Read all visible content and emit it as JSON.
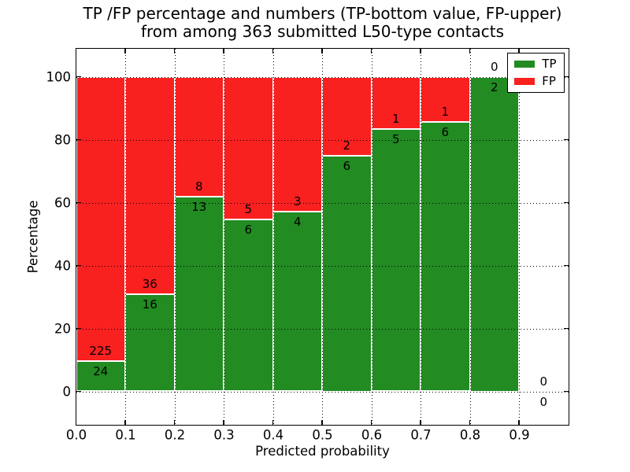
{
  "chart_data": {
    "type": "bar",
    "stacked": true,
    "normalized_to_percent": true,
    "title": "TP /FP percentage and numbers (TP-bottom value, FP-upper) from among 363 submitted L50-type contacts",
    "title_line1": "TP /FP percentage and numbers (TP-bottom value, FP-upper)",
    "title_line2": "from among 363 submitted L50-type contacts",
    "xlabel": "Predicted probability",
    "ylabel": "Percentage",
    "total_contacts": 363,
    "bin_left_edges": [
      0.0,
      0.1,
      0.2,
      0.3,
      0.4,
      0.5,
      0.6,
      0.7,
      0.8,
      0.9
    ],
    "bin_width": 0.1,
    "series": [
      {
        "name": "TP",
        "color": "#228b22",
        "values": [
          24,
          16,
          13,
          6,
          4,
          6,
          5,
          6,
          2,
          0
        ]
      },
      {
        "name": "FP",
        "color": "#f92020",
        "values": [
          225,
          36,
          8,
          5,
          3,
          2,
          1,
          1,
          0,
          0
        ]
      }
    ],
    "tp_percent_of_bin": [
      9.64,
      30.77,
      61.9,
      54.55,
      57.14,
      75.0,
      83.33,
      85.71,
      100.0,
      null
    ],
    "xlim": [
      0.0,
      1.0
    ],
    "ylim": [
      0,
      100
    ],
    "x_tick_labels": [
      "0.0",
      "0.1",
      "0.2",
      "0.3",
      "0.4",
      "0.5",
      "0.6",
      "0.7",
      "0.8",
      "0.9"
    ],
    "x_tick_values": [
      0.0,
      0.1,
      0.2,
      0.3,
      0.4,
      0.5,
      0.6,
      0.7,
      0.8,
      0.9
    ],
    "y_tick_labels": [
      "0",
      "20",
      "40",
      "60",
      "80",
      "100"
    ],
    "y_tick_values": [
      0,
      20,
      40,
      60,
      80,
      100
    ],
    "grid": "dotted",
    "bar_edge_color": "#ffffff",
    "legend": {
      "position": "upper right",
      "entries": [
        {
          "label": "TP",
          "color": "#228b22"
        },
        {
          "label": "FP",
          "color": "#f92020"
        }
      ]
    }
  }
}
